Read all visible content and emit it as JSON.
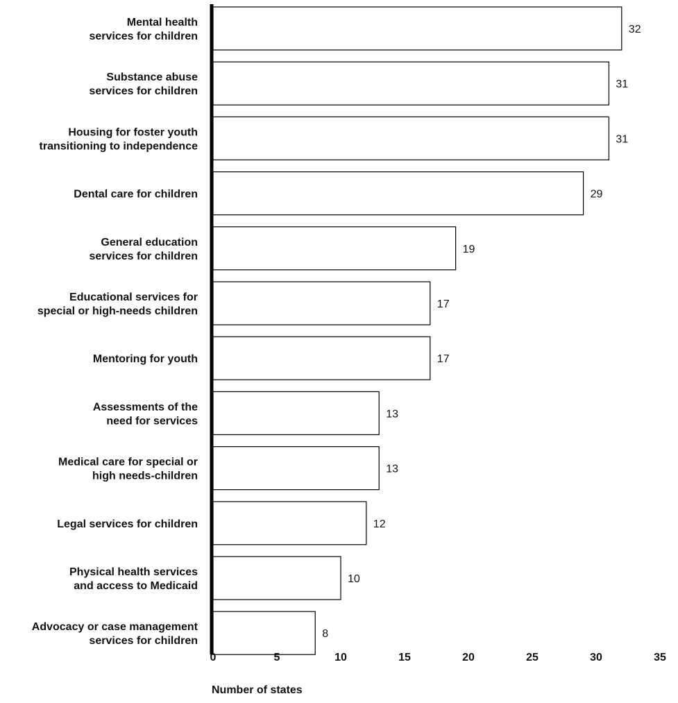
{
  "chart_data": {
    "type": "bar",
    "orientation": "horizontal",
    "title": "",
    "xlabel": "Number of states",
    "ylabel": "",
    "xlim": [
      0,
      35
    ],
    "xticks": [
      0,
      5,
      10,
      15,
      20,
      25,
      30,
      35
    ],
    "grid": false,
    "legend": "none",
    "bar_fill": "#ffffff",
    "bar_stroke": "#000000",
    "categories": [
      [
        "Mental health",
        "services for children"
      ],
      [
        "Substance abuse",
        "services for children"
      ],
      [
        "Housing for foster youth",
        "transitioning to independence"
      ],
      [
        "Dental care for children"
      ],
      [
        "General education",
        "services for children"
      ],
      [
        "Educational services for",
        "special or high-needs children"
      ],
      [
        "Mentoring for youth"
      ],
      [
        "Assessments of the",
        "need for services"
      ],
      [
        "Medical care for special or",
        "high needs-children"
      ],
      [
        "Legal services for children"
      ],
      [
        "Physical health services",
        "and access to Medicaid"
      ],
      [
        "Advocacy or case management",
        "services for children"
      ]
    ],
    "values": [
      32,
      31,
      31,
      29,
      19,
      17,
      17,
      13,
      13,
      12,
      10,
      8
    ]
  }
}
